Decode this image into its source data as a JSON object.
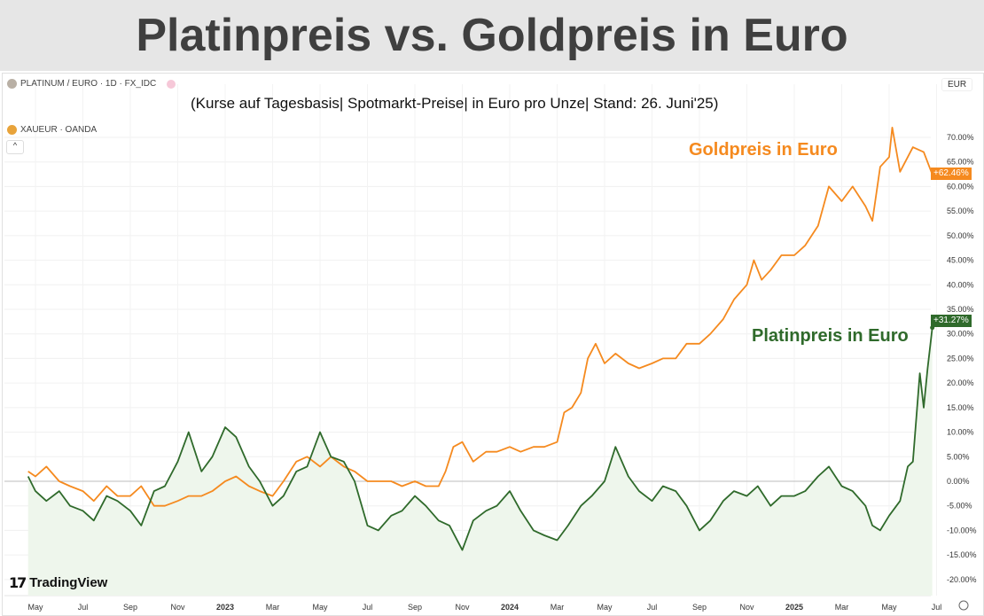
{
  "title": "Platinpreis vs. Goldpreis in Euro",
  "subtitle": "(Kurse auf Tagesbasis| Spotmarkt-Preise| in Euro pro Unze| Stand: 26. Juni'25)",
  "header": {
    "main_symbol": "PLATINUM / EURO · 1D · FX_IDC",
    "compare_symbol": "XAUEUR · OANDA",
    "currency": "EUR",
    "collapse": "^",
    "brand": "TradingView"
  },
  "colors": {
    "gold": "#f58a1f",
    "platinum": "#2f6a2b",
    "platinum_fill": "#eef6ec"
  },
  "chart_data": {
    "type": "line",
    "title": "Platinpreis vs. Goldpreis in Euro",
    "ylim": [
      -20,
      72
    ],
    "y_ticks": [
      "70.00%",
      "65.00%",
      "60.00%",
      "55.00%",
      "50.00%",
      "45.00%",
      "40.00%",
      "35.00%",
      "30.00%",
      "25.00%",
      "20.00%",
      "15.00%",
      "10.00%",
      "5.00%",
      "0.00%",
      "-5.00%",
      "-10.00%",
      "-15.00%",
      "-20.00%"
    ],
    "x_ticks": [
      "May",
      "Jul",
      "Sep",
      "Nov",
      "2023",
      "Mar",
      "May",
      "Jul",
      "Sep",
      "Nov",
      "2024",
      "Mar",
      "May",
      "Jul",
      "Sep",
      "Nov",
      "2025",
      "Mar",
      "May",
      "Jul"
    ],
    "grid": true,
    "series": [
      {
        "name": "Goldpreis in Euro",
        "last_label": "+62.46%",
        "points": [
          [
            "2022-04-22",
            2
          ],
          [
            "2022-05-01",
            1
          ],
          [
            "2022-05-15",
            3
          ],
          [
            "2022-06-01",
            0
          ],
          [
            "2022-06-15",
            -1
          ],
          [
            "2022-07-01",
            -2
          ],
          [
            "2022-07-15",
            -4
          ],
          [
            "2022-08-01",
            -1
          ],
          [
            "2022-08-15",
            -3
          ],
          [
            "2022-09-01",
            -3
          ],
          [
            "2022-09-15",
            -1
          ],
          [
            "2022-10-01",
            -5
          ],
          [
            "2022-10-15",
            -5
          ],
          [
            "2022-11-01",
            -4
          ],
          [
            "2022-11-15",
            -3
          ],
          [
            "2022-12-01",
            -3
          ],
          [
            "2022-12-15",
            -2
          ],
          [
            "2023-01-01",
            0
          ],
          [
            "2023-01-15",
            1
          ],
          [
            "2023-02-01",
            -1
          ],
          [
            "2023-02-15",
            -2
          ],
          [
            "2023-03-01",
            -3
          ],
          [
            "2023-03-15",
            0
          ],
          [
            "2023-04-01",
            4
          ],
          [
            "2023-04-15",
            5
          ],
          [
            "2023-05-01",
            3
          ],
          [
            "2023-05-15",
            5
          ],
          [
            "2023-06-01",
            3
          ],
          [
            "2023-06-15",
            2
          ],
          [
            "2023-07-01",
            0
          ],
          [
            "2023-07-15",
            0
          ],
          [
            "2023-08-01",
            0
          ],
          [
            "2023-08-15",
            -1
          ],
          [
            "2023-09-01",
            0
          ],
          [
            "2023-09-15",
            -1
          ],
          [
            "2023-10-01",
            -1
          ],
          [
            "2023-10-10",
            2
          ],
          [
            "2023-10-20",
            7
          ],
          [
            "2023-11-01",
            8
          ],
          [
            "2023-11-15",
            4
          ],
          [
            "2023-12-01",
            6
          ],
          [
            "2023-12-15",
            6
          ],
          [
            "2024-01-01",
            7
          ],
          [
            "2024-01-15",
            6
          ],
          [
            "2024-02-01",
            7
          ],
          [
            "2024-02-15",
            7
          ],
          [
            "2024-03-01",
            8
          ],
          [
            "2024-03-10",
            14
          ],
          [
            "2024-03-20",
            15
          ],
          [
            "2024-04-01",
            18
          ],
          [
            "2024-04-10",
            25
          ],
          [
            "2024-04-20",
            28
          ],
          [
            "2024-05-01",
            24
          ],
          [
            "2024-05-15",
            26
          ],
          [
            "2024-06-01",
            24
          ],
          [
            "2024-06-15",
            23
          ],
          [
            "2024-07-01",
            24
          ],
          [
            "2024-07-15",
            25
          ],
          [
            "2024-08-01",
            25
          ],
          [
            "2024-08-15",
            28
          ],
          [
            "2024-09-01",
            28
          ],
          [
            "2024-09-15",
            30
          ],
          [
            "2024-10-01",
            33
          ],
          [
            "2024-10-15",
            37
          ],
          [
            "2024-11-01",
            40
          ],
          [
            "2024-11-10",
            45
          ],
          [
            "2024-11-20",
            41
          ],
          [
            "2024-12-01",
            43
          ],
          [
            "2024-12-15",
            46
          ],
          [
            "2025-01-01",
            46
          ],
          [
            "2025-01-15",
            48
          ],
          [
            "2025-02-01",
            52
          ],
          [
            "2025-02-15",
            60
          ],
          [
            "2025-03-01",
            57
          ],
          [
            "2025-03-15",
            60
          ],
          [
            "2025-04-01",
            56
          ],
          [
            "2025-04-10",
            53
          ],
          [
            "2025-04-20",
            64
          ],
          [
            "2025-05-01",
            66
          ],
          [
            "2025-05-05",
            72
          ],
          [
            "2025-05-15",
            63
          ],
          [
            "2025-06-01",
            68
          ],
          [
            "2025-06-15",
            67
          ],
          [
            "2025-06-26",
            62.46
          ]
        ]
      },
      {
        "name": "Platinpreis in Euro",
        "last_label": "+31.27%",
        "points": [
          [
            "2022-04-22",
            1
          ],
          [
            "2022-05-01",
            -2
          ],
          [
            "2022-05-15",
            -4
          ],
          [
            "2022-06-01",
            -2
          ],
          [
            "2022-06-15",
            -5
          ],
          [
            "2022-07-01",
            -6
          ],
          [
            "2022-07-15",
            -8
          ],
          [
            "2022-08-01",
            -3
          ],
          [
            "2022-08-15",
            -4
          ],
          [
            "2022-09-01",
            -6
          ],
          [
            "2022-09-15",
            -9
          ],
          [
            "2022-10-01",
            -2
          ],
          [
            "2022-10-15",
            -1
          ],
          [
            "2022-11-01",
            4
          ],
          [
            "2022-11-15",
            10
          ],
          [
            "2022-12-01",
            2
          ],
          [
            "2022-12-15",
            5
          ],
          [
            "2023-01-01",
            11
          ],
          [
            "2023-01-15",
            9
          ],
          [
            "2023-02-01",
            3
          ],
          [
            "2023-02-15",
            0
          ],
          [
            "2023-03-01",
            -5
          ],
          [
            "2023-03-15",
            -3
          ],
          [
            "2023-04-01",
            2
          ],
          [
            "2023-04-15",
            3
          ],
          [
            "2023-05-01",
            10
          ],
          [
            "2023-05-15",
            5
          ],
          [
            "2023-06-01",
            4
          ],
          [
            "2023-06-15",
            0
          ],
          [
            "2023-07-01",
            -9
          ],
          [
            "2023-07-15",
            -10
          ],
          [
            "2023-08-01",
            -7
          ],
          [
            "2023-08-15",
            -6
          ],
          [
            "2023-09-01",
            -3
          ],
          [
            "2023-09-15",
            -5
          ],
          [
            "2023-10-01",
            -8
          ],
          [
            "2023-10-15",
            -9
          ],
          [
            "2023-11-01",
            -14
          ],
          [
            "2023-11-15",
            -8
          ],
          [
            "2023-12-01",
            -6
          ],
          [
            "2023-12-15",
            -5
          ],
          [
            "2024-01-01",
            -2
          ],
          [
            "2024-01-15",
            -6
          ],
          [
            "2024-02-01",
            -10
          ],
          [
            "2024-02-15",
            -11
          ],
          [
            "2024-03-01",
            -12
          ],
          [
            "2024-03-15",
            -9
          ],
          [
            "2024-04-01",
            -5
          ],
          [
            "2024-04-15",
            -3
          ],
          [
            "2024-05-01",
            0
          ],
          [
            "2024-05-15",
            7
          ],
          [
            "2024-06-01",
            1
          ],
          [
            "2024-06-15",
            -2
          ],
          [
            "2024-07-01",
            -4
          ],
          [
            "2024-07-15",
            -1
          ],
          [
            "2024-08-01",
            -2
          ],
          [
            "2024-08-15",
            -5
          ],
          [
            "2024-09-01",
            -10
          ],
          [
            "2024-09-15",
            -8
          ],
          [
            "2024-10-01",
            -4
          ],
          [
            "2024-10-15",
            -2
          ],
          [
            "2024-11-01",
            -3
          ],
          [
            "2024-11-15",
            -1
          ],
          [
            "2024-12-01",
            -5
          ],
          [
            "2024-12-15",
            -3
          ],
          [
            "2025-01-01",
            -3
          ],
          [
            "2025-01-15",
            -2
          ],
          [
            "2025-02-01",
            1
          ],
          [
            "2025-02-15",
            3
          ],
          [
            "2025-03-01",
            -1
          ],
          [
            "2025-03-15",
            -2
          ],
          [
            "2025-04-01",
            -5
          ],
          [
            "2025-04-10",
            -9
          ],
          [
            "2025-04-20",
            -10
          ],
          [
            "2025-05-01",
            -7
          ],
          [
            "2025-05-15",
            -4
          ],
          [
            "2025-05-25",
            3
          ],
          [
            "2025-06-01",
            4
          ],
          [
            "2025-06-10",
            22
          ],
          [
            "2025-06-15",
            15
          ],
          [
            "2025-06-20",
            23
          ],
          [
            "2025-06-26",
            31.27
          ]
        ]
      }
    ]
  }
}
